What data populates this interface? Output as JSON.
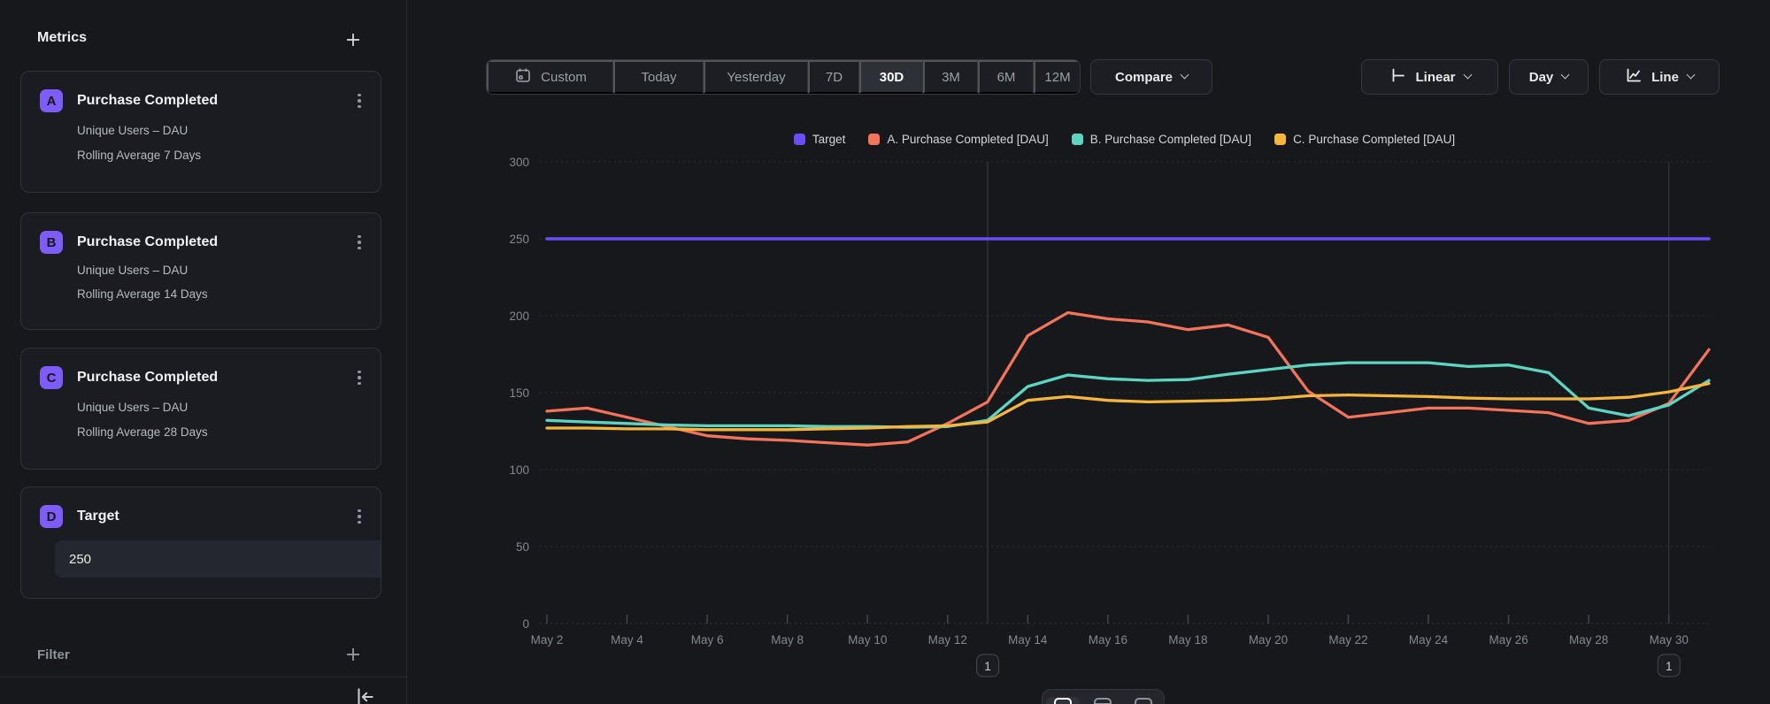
{
  "colors": {
    "accent_purple": "#7d5cf9"
  },
  "sidebar": {
    "metrics_header": {
      "title": "Metrics"
    },
    "metric_cards": [
      {
        "letter": "A",
        "title": "Purchase Completed",
        "line1": "Unique Users – DAU",
        "line2": "Rolling Average 7 Days"
      },
      {
        "letter": "B",
        "title": "Purchase Completed",
        "line1": "Unique Users – DAU",
        "line2": "Rolling Average 14 Days"
      },
      {
        "letter": "C",
        "title": "Purchase Completed",
        "line1": "Unique Users – DAU",
        "line2": "Rolling Average 28 Days"
      }
    ],
    "target_card": {
      "letter": "D",
      "title": "Target",
      "value": "250"
    },
    "filter_header": {
      "title": "Filter"
    }
  },
  "toolbar": {
    "date_ranges": [
      {
        "label": "Custom"
      },
      {
        "label": "Today"
      },
      {
        "label": "Yesterday"
      },
      {
        "label": "7D"
      },
      {
        "label": "30D"
      },
      {
        "label": "3M"
      },
      {
        "label": "6M"
      },
      {
        "label": "12M"
      }
    ],
    "active_range": "30D",
    "compare_label": "Compare",
    "scale_label": "Linear",
    "granularity_label": "Day",
    "chart_type_label": "Line"
  },
  "bottom_toolbar": {
    "icons": [
      "chart-view-icon",
      "table-view-icon",
      "panel-view-icon"
    ]
  },
  "chart_data": {
    "type": "line",
    "x": [
      "May 2",
      "May 3",
      "May 4",
      "May 5",
      "May 6",
      "May 7",
      "May 8",
      "May 9",
      "May 10",
      "May 11",
      "May 12",
      "May 13",
      "May 14",
      "May 15",
      "May 16",
      "May 17",
      "May 18",
      "May 19",
      "May 20",
      "May 21",
      "May 22",
      "May 23",
      "May 24",
      "May 25",
      "May 26",
      "May 27",
      "May 28",
      "May 29",
      "May 30",
      "May 31"
    ],
    "x_tick_labels": [
      "May 2",
      "May 4",
      "May 6",
      "May 8",
      "May 10",
      "May 12",
      "May 14",
      "May 16",
      "May 18",
      "May 20",
      "May 22",
      "May 24",
      "May 26",
      "May 28",
      "May 30"
    ],
    "ylim": [
      0,
      300
    ],
    "y_ticks": [
      0,
      50,
      100,
      150,
      200,
      250,
      300
    ],
    "grid": true,
    "legend_position": "top-center",
    "series": [
      {
        "name": "Target",
        "color": "#6b4df6",
        "values": [
          250,
          250,
          250,
          250,
          250,
          250,
          250,
          250,
          250,
          250,
          250,
          250,
          250,
          250,
          250,
          250,
          250,
          250,
          250,
          250,
          250,
          250,
          250,
          250,
          250,
          250,
          250,
          250,
          250,
          250
        ]
      },
      {
        "name": "A. Purchase Completed [DAU]",
        "color": "#f3735b",
        "values": [
          138,
          140,
          134,
          128,
          122,
          120,
          119,
          117.5,
          116,
          118,
          130,
          144,
          187,
          202,
          198,
          196,
          191,
          194,
          186,
          151,
          134,
          137,
          140,
          140,
          138.5,
          137,
          130,
          132,
          143,
          178
        ]
      },
      {
        "name": "B. Purchase Completed [DAU]",
        "color": "#5ed5c3",
        "values": [
          132,
          131,
          130,
          129,
          128.5,
          128.5,
          128.5,
          128,
          128,
          127.5,
          128,
          132,
          154,
          161.5,
          159,
          158,
          158.5,
          162,
          165,
          168,
          169.5,
          169.5,
          169.5,
          167,
          168,
          163,
          140,
          135,
          142,
          158
        ]
      },
      {
        "name": "C. Purchase Completed [DAU]",
        "color": "#f4b63d",
        "values": [
          127,
          127,
          126.5,
          126.5,
          126,
          126,
          126,
          126.5,
          127,
          128,
          128.5,
          131,
          145,
          147.5,
          145,
          144,
          144.5,
          145,
          146,
          148,
          148.5,
          148,
          147.5,
          146.5,
          146,
          146,
          146,
          147,
          150.5,
          156
        ]
      }
    ],
    "annotations": [
      {
        "x_label": "May 13",
        "badge": "1"
      },
      {
        "x_label": "May 30",
        "badge": "1"
      }
    ]
  }
}
